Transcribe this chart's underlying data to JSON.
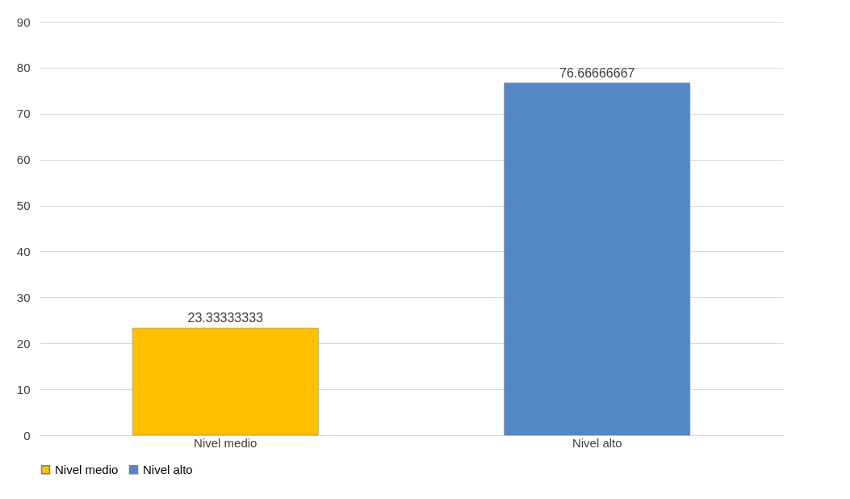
{
  "chart_data": {
    "type": "bar",
    "categories": [
      "Nivel medio",
      "Nivel alto"
    ],
    "series": [
      {
        "name": "Nivel medio",
        "color": "#ffc000",
        "values": [
          23.33333333,
          null
        ]
      },
      {
        "name": "Nivel alto",
        "color": "#5587c8",
        "values": [
          null,
          76.66666667
        ]
      }
    ],
    "stacked": true,
    "ylim": [
      0,
      90
    ],
    "yticks": [
      0,
      10,
      20,
      30,
      40,
      50,
      60,
      70,
      80,
      90
    ],
    "grid": "y",
    "legend": "bottom",
    "data_labels": true
  }
}
